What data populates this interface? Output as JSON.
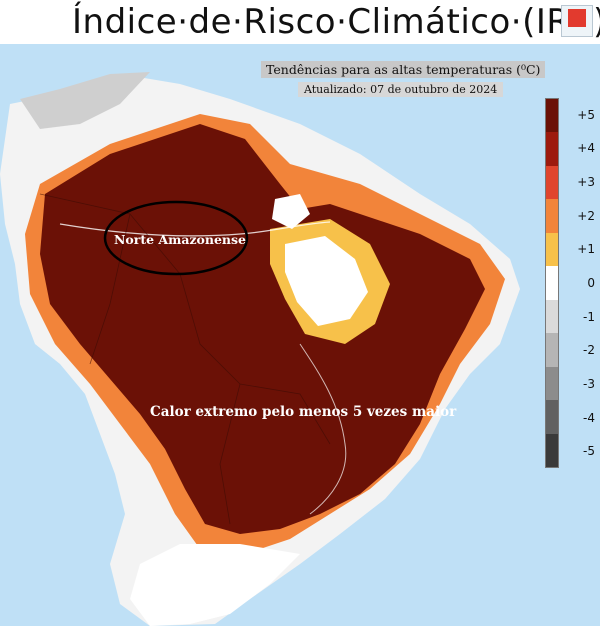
{
  "title": "Índice·de·Risco·Climático·(IRC)",
  "subtitle": "Tendências para as altas temperaturas (⁰C)",
  "updated": "Atualizado: 07 de outubro de 2024",
  "annotations": {
    "region_label": "Norte Amazonense",
    "heat_label": "Calor extremo pelo menos 5 vezes maior"
  },
  "legend": {
    "ticks": [
      "+5",
      "+4",
      "+3",
      "+2",
      "+1",
      "0",
      "-1",
      "-2",
      "-3",
      "-4",
      "-5"
    ],
    "colors": [
      "#6b1106",
      "#9d1a0d",
      "#e0452d",
      "#f2843a",
      "#f7c14a",
      "#ffffff",
      "#dadada",
      "#b5b5b5",
      "#8c8c8c",
      "#616161",
      "#3a3a3a"
    ]
  },
  "map_colors": {
    "ocean": "#bfe0f6",
    "land_neutral": "#ffffff",
    "extreme_heat": "#6b1106"
  }
}
